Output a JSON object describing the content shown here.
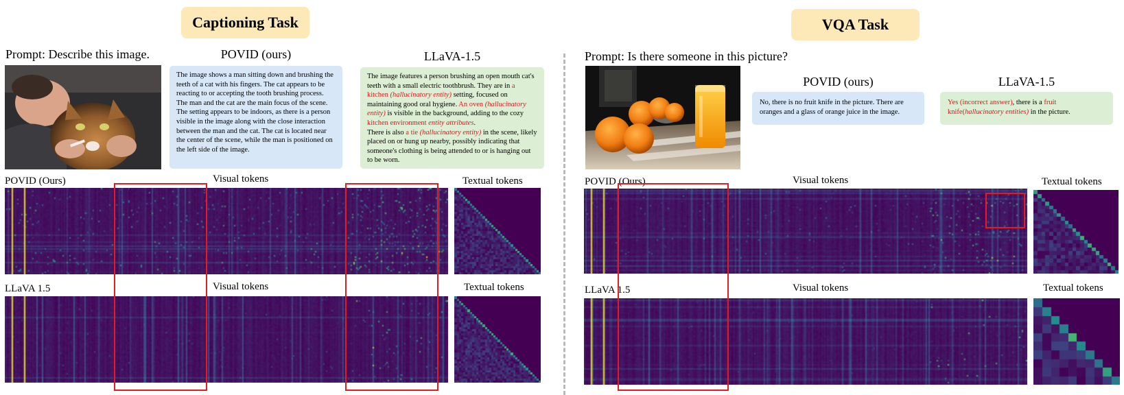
{
  "captioning": {
    "title": "Captioning Task",
    "prompt": "Prompt: Describe this image.",
    "povid_heading": "POVID (ours)",
    "llava_heading": "LLaVA-1.5",
    "povid_text": [
      {
        "t": "The image shows a man sitting down and brushing the teeth of a cat with his fingers. The cat appears to be reacting to or accepting the tooth brushing process. The man and the cat are the main focus of the scene.",
        "s": "n"
      },
      {
        "t": "\n",
        "s": "n"
      },
      {
        "t": "The setting appears to be indoors, as there is a person visible in the image along with the close interaction between the man and the cat. The cat is located near the center of the scene, while the man is positioned on the left side of the image.",
        "s": "n"
      }
    ],
    "llava_text": [
      {
        "t": "The image features a person brushing an open mouth cat's teeth with a small electric toothbrush. They are in ",
        "s": "n"
      },
      {
        "t": "a kitchen ",
        "s": "r"
      },
      {
        "t": "(hallucinatory entity)",
        "s": "ri"
      },
      {
        "t": "  setting, focused on maintaining good oral hygiene. ",
        "s": "n"
      },
      {
        "t": "An oven ",
        "s": "r"
      },
      {
        "t": "(hallucinatory entity)",
        "s": "ri"
      },
      {
        "t": " is visible in the background, adding to the cozy ",
        "s": "n"
      },
      {
        "t": "kitchen environment ",
        "s": "r"
      },
      {
        "t": "entity attributes",
        "s": "ri"
      },
      {
        "t": ".",
        "s": "n"
      },
      {
        "t": "\n",
        "s": "n"
      },
      {
        "t": "There is also ",
        "s": "n"
      },
      {
        "t": "a tie ",
        "s": "r"
      },
      {
        "t": "(hallucinatory entity)",
        "s": "ri"
      },
      {
        "t": "  in the scene, likely placed on or hung up nearby, possibly indicating that someone's clothing is being attended to or is hanging out to be worn.",
        "s": "n"
      }
    ],
    "row1_label": "POVID (Ours)",
    "row2_label": "LLaVA 1.5",
    "visual_label": "Visual tokens",
    "textual_label": "Textual tokens"
  },
  "vqa": {
    "title": "VQA Task",
    "prompt": "Prompt: Is there someone in this picture?",
    "povid_heading": "POVID (ours)",
    "llava_heading": "LLaVA-1.5",
    "povid_text": [
      {
        "t": "No, there is no fruit knife in the picture. There are oranges and a glass of orange juice in the image.",
        "s": "n"
      }
    ],
    "llava_text": [
      {
        "t": "Yes (incorrect answer)",
        "s": "r"
      },
      {
        "t": ", there is a ",
        "s": "n"
      },
      {
        "t": "fruit knife(",
        "s": "r"
      },
      {
        "t": "hallucinatory entities)",
        "s": "ri"
      },
      {
        "t": " in the picture.",
        "s": "n"
      }
    ],
    "row1_label": "POVID (Ours)",
    "row2_label": "LLaVA 1.5",
    "visual_label": "Visual tokens",
    "textual_label": "Textual tokens"
  },
  "colors": {
    "badge": "#fde9b8",
    "povid_box": "#d8e7f7",
    "llava_box": "#dcefd4",
    "hallucination": "#e8131b",
    "highlight_box": "#e8191f",
    "heatmap_background": "#440154"
  }
}
